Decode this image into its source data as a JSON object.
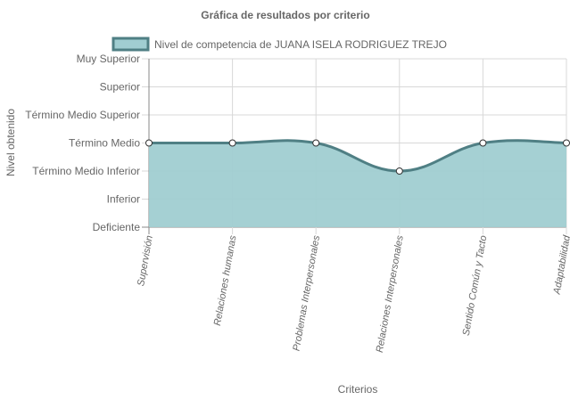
{
  "chart_data": {
    "type": "area",
    "title": "Gráfica de resultados por criterio",
    "xlabel": "Criterios",
    "ylabel": "Nivel obtenido",
    "categories": [
      "Supervisión",
      "Relaciones humanas",
      "Problemas Interpersonales",
      "Relaciones Interpersonales",
      "Sentido Común y Tacto",
      "Adaptabilidad"
    ],
    "levels": [
      "Deficiente",
      "Inferior",
      "Término Medio Inferior",
      "Término Medio",
      "Término Medio Superior",
      "Superior",
      "Muy Superior"
    ],
    "series": [
      {
        "name": "Nivel de competencia de JUANA ISELA RODRIGUEZ TREJO",
        "values": [
          3,
          3,
          3,
          2,
          3,
          3
        ]
      }
    ],
    "ylim": [
      0,
      6
    ],
    "grid": true,
    "legend": "top",
    "colors": {
      "fill": "#a0cdd1",
      "line": "#4f7f84",
      "grid": "#d8d8d8",
      "axis": "#888888",
      "point_fill": "#ffffff"
    }
  }
}
